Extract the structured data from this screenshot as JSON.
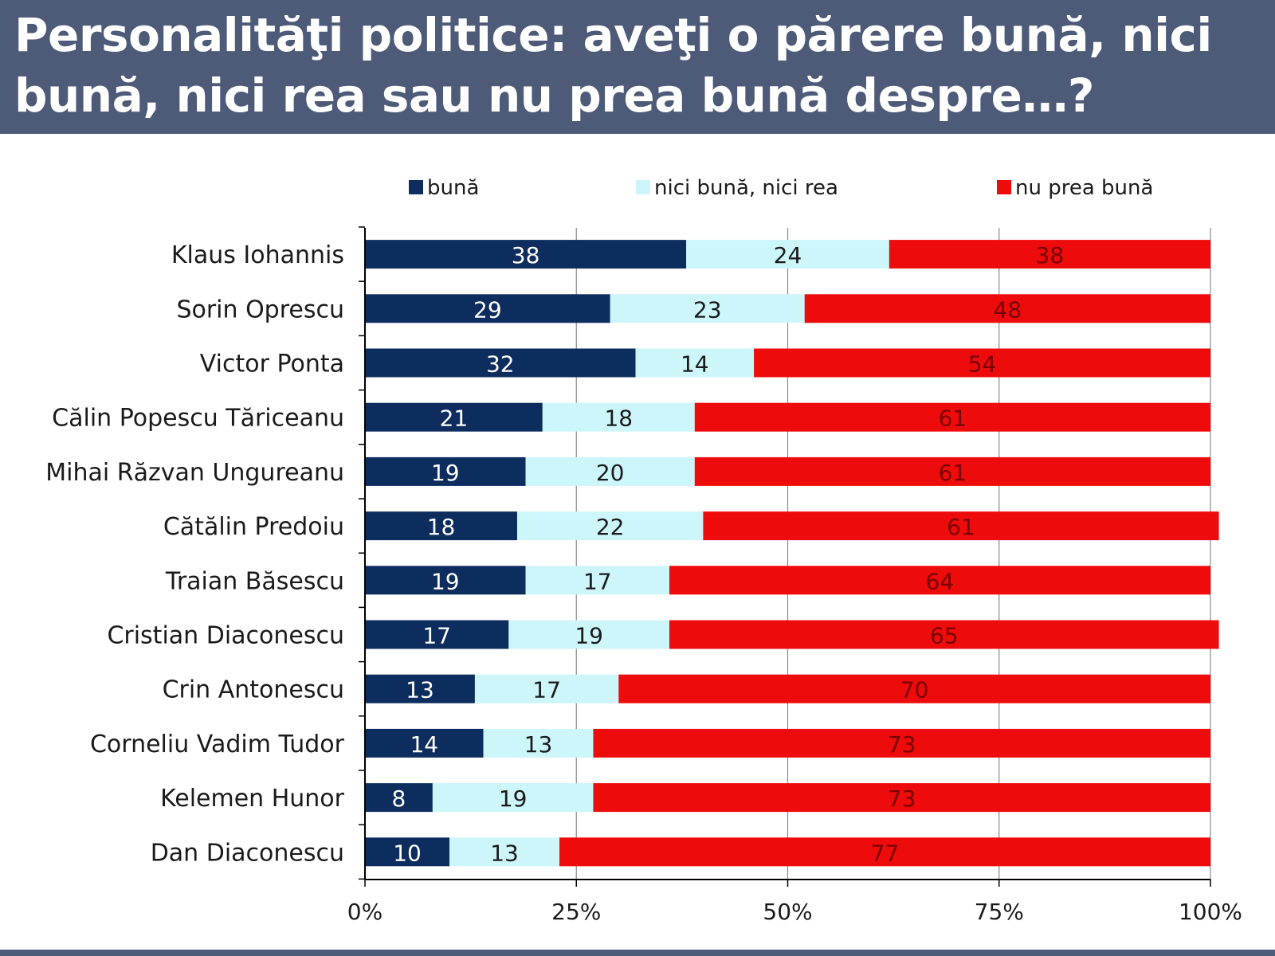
{
  "title": "Personalităţi politice: aveţi o părere bună, nici bună, nici rea sau nu prea bună despre…?",
  "chart_data": {
    "type": "bar",
    "orientation": "horizontal",
    "stacked": "percent",
    "categories": [
      "Klaus Iohannis",
      "Sorin Oprescu",
      "Victor Ponta",
      "Călin Popescu Tăriceanu",
      "Mihai Răzvan Ungureanu",
      "Cătălin Predoiu",
      "Traian Băsescu",
      "Cristian Diaconescu",
      "Crin Antonescu",
      "Corneliu Vadim Tudor",
      "Kelemen Hunor",
      "Dan Diaconescu"
    ],
    "series": [
      {
        "name": "bună",
        "color": "#0d2d5e",
        "label_color": "#ffffff",
        "values": [
          38,
          29,
          32,
          21,
          19,
          18,
          19,
          17,
          13,
          14,
          8,
          10
        ]
      },
      {
        "name": "nici bună, nici rea",
        "color": "#cdf6fb",
        "label_color": "#1a1a1a",
        "values": [
          24,
          23,
          14,
          18,
          20,
          22,
          17,
          19,
          17,
          13,
          19,
          13
        ]
      },
      {
        "name": "nu prea bună",
        "color": "#ee0b0b",
        "label_color": "#7a0000",
        "values": [
          38,
          48,
          54,
          61,
          61,
          61,
          64,
          65,
          70,
          73,
          73,
          77
        ]
      }
    ],
    "xlim": [
      0,
      100
    ],
    "xticks": [
      "0%",
      "25%",
      "50%",
      "75%",
      "100%"
    ],
    "grid": true,
    "legend_position": "top",
    "xlabel": "",
    "ylabel": ""
  }
}
